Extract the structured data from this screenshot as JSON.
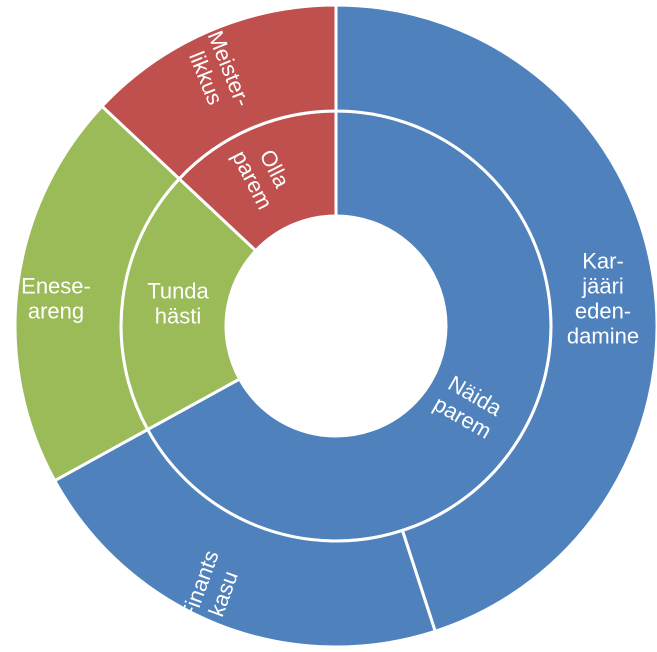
{
  "chart_data": {
    "type": "sunburst",
    "children": [
      {
        "name": [
          "Näida",
          "parem"
        ],
        "value": 67,
        "color": "#4f81bd",
        "children": [
          {
            "name": [
              "Kar-",
              "jääri",
              "eden-",
              "damine"
            ],
            "value": 45
          },
          {
            "name": [
              "Finants",
              "kasu"
            ],
            "value": 22
          }
        ]
      },
      {
        "name": [
          "Tunda",
          "hästi"
        ],
        "value": 20,
        "color": "#9bbb59",
        "children": [
          {
            "name": [
              "Enese-",
              "areng"
            ],
            "value": 20
          }
        ]
      },
      {
        "name": [
          "Olla",
          "parem"
        ],
        "value": 13,
        "color": "#c0504d",
        "children": [
          {
            "name": [
              "Meister-",
              "likkus"
            ],
            "value": 13
          }
        ]
      }
    ]
  }
}
